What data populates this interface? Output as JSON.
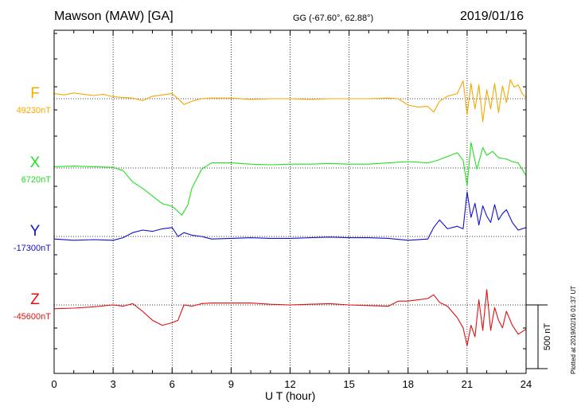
{
  "header": {
    "title": "Mawson (MAW)  [GA]",
    "coords": "GG (-67.60°,  62.88°)",
    "date": "2019/01/16"
  },
  "footer": {
    "plotted": "Plotted at 2019/02/16 01:37 UT"
  },
  "colors": {
    "F": "#f5a800",
    "X": "#22e022",
    "Y": "#1010d0",
    "Z": "#e01010"
  },
  "chart_data": {
    "type": "line",
    "title": "Mawson (MAW)  [GA]",
    "xlabel": "U T (hour)",
    "ylabel": "",
    "xlim": [
      0,
      24
    ],
    "xticks": [
      0,
      3,
      6,
      9,
      12,
      15,
      18,
      21,
      24
    ],
    "grid": "dotted vertical every 3 h",
    "scale_bar": {
      "label": "500 nT",
      "value_nT": 500
    },
    "series": [
      {
        "name": "F",
        "baseline_label": "49230nT",
        "baseline_nT": 49230,
        "x": [
          0,
          0.5,
          1,
          1.5,
          2,
          2.5,
          3,
          3.5,
          4,
          4.5,
          5,
          5.5,
          6,
          6.3,
          6.6,
          7,
          7.5,
          8,
          9,
          10,
          11,
          12,
          13,
          14,
          15,
          16,
          17,
          17.5,
          18,
          18.5,
          19,
          19.3,
          19.6,
          20,
          20.5,
          20.8,
          21,
          21.2,
          21.4,
          21.6,
          21.8,
          22,
          22.2,
          22.4,
          22.6,
          22.8,
          23,
          23.2,
          23.4,
          23.6,
          23.8,
          24
        ],
        "y": [
          49270,
          49260,
          49275,
          49265,
          49255,
          49265,
          49245,
          49240,
          49235,
          49215,
          49250,
          49260,
          49270,
          49230,
          49185,
          49210,
          49230,
          49235,
          49235,
          49225,
          49230,
          49230,
          49225,
          49230,
          49230,
          49230,
          49235,
          49230,
          49180,
          49165,
          49170,
          49125,
          49210,
          49250,
          49270,
          49370,
          49105,
          49350,
          49150,
          49340,
          49050,
          49300,
          49150,
          49350,
          49120,
          49330,
          49200,
          49380,
          49320,
          49340,
          49270,
          49240
        ]
      },
      {
        "name": "X",
        "baseline_label": "6720nT",
        "baseline_nT": 6720,
        "x": [
          0,
          1,
          2,
          3,
          3.5,
          4,
          4.5,
          5,
          5.5,
          6,
          6.5,
          6.8,
          7,
          7.5,
          8,
          9,
          10,
          11,
          12,
          13,
          14,
          15,
          16,
          17,
          18,
          19,
          19.5,
          20,
          20.5,
          20.8,
          21,
          21.2,
          21.5,
          21.8,
          22,
          22.3,
          22.6,
          23,
          23.3,
          23.6,
          24
        ],
        "y": [
          6730,
          6735,
          6730,
          6725,
          6700,
          6610,
          6560,
          6500,
          6440,
          6420,
          6350,
          6430,
          6560,
          6710,
          6760,
          6760,
          6750,
          6745,
          6750,
          6750,
          6755,
          6750,
          6750,
          6760,
          6770,
          6760,
          6780,
          6810,
          6840,
          6780,
          6580,
          6920,
          6710,
          6880,
          6820,
          6850,
          6800,
          6790,
          6770,
          6760,
          6660
        ]
      },
      {
        "name": "Y",
        "baseline_label": "-17300nT",
        "baseline_nT": -17300,
        "x": [
          0,
          1,
          2,
          3,
          3.5,
          4,
          4.5,
          5,
          5.5,
          6,
          6.3,
          6.6,
          7,
          7.5,
          8,
          9,
          10,
          11,
          12,
          13,
          14,
          15,
          16,
          17,
          18,
          19,
          19.3,
          19.6,
          20,
          20.5,
          20.8,
          21,
          21.2,
          21.4,
          21.6,
          21.8,
          22,
          22.2,
          22.4,
          22.6,
          22.8,
          23,
          23.3,
          23.6,
          24
        ],
        "y": [
          -17320,
          -17330,
          -17325,
          -17330,
          -17310,
          -17270,
          -17250,
          -17260,
          -17240,
          -17230,
          -17300,
          -17270,
          -17290,
          -17300,
          -17320,
          -17315,
          -17310,
          -17315,
          -17315,
          -17310,
          -17305,
          -17310,
          -17310,
          -17315,
          -17330,
          -17320,
          -17230,
          -17170,
          -17240,
          -17220,
          -17240,
          -16950,
          -17150,
          -17040,
          -17210,
          -17060,
          -17140,
          -17190,
          -17050,
          -17170,
          -17120,
          -17090,
          -17190,
          -17250,
          -17230
        ]
      },
      {
        "name": "Z",
        "baseline_label": "-45600nT",
        "baseline_nT": -45600,
        "x": [
          0,
          1,
          2,
          3,
          3.5,
          4,
          4.5,
          5,
          5.5,
          6,
          6.3,
          6.6,
          7,
          7.5,
          8,
          9,
          10,
          11,
          12,
          13,
          14,
          15,
          16,
          17,
          17.5,
          18,
          18.5,
          19,
          19.3,
          19.6,
          20,
          20.5,
          20.8,
          21,
          21.2,
          21.4,
          21.6,
          21.8,
          22,
          22.2,
          22.4,
          22.6,
          22.8,
          23,
          23.3,
          23.6,
          24
        ],
        "y": [
          -45630,
          -45625,
          -45615,
          -45600,
          -45610,
          -45590,
          -45650,
          -45720,
          -45760,
          -45740,
          -45720,
          -45600,
          -45610,
          -45590,
          -45585,
          -45585,
          -45585,
          -45595,
          -45600,
          -45595,
          -45590,
          -45600,
          -45605,
          -45610,
          -45570,
          -45570,
          -45560,
          -45550,
          -45520,
          -45580,
          -45610,
          -45700,
          -45780,
          -45920,
          -45760,
          -45850,
          -45560,
          -45800,
          -45480,
          -45800,
          -45620,
          -45720,
          -45780,
          -45650,
          -45760,
          -45830,
          -45790
        ]
      }
    ]
  }
}
